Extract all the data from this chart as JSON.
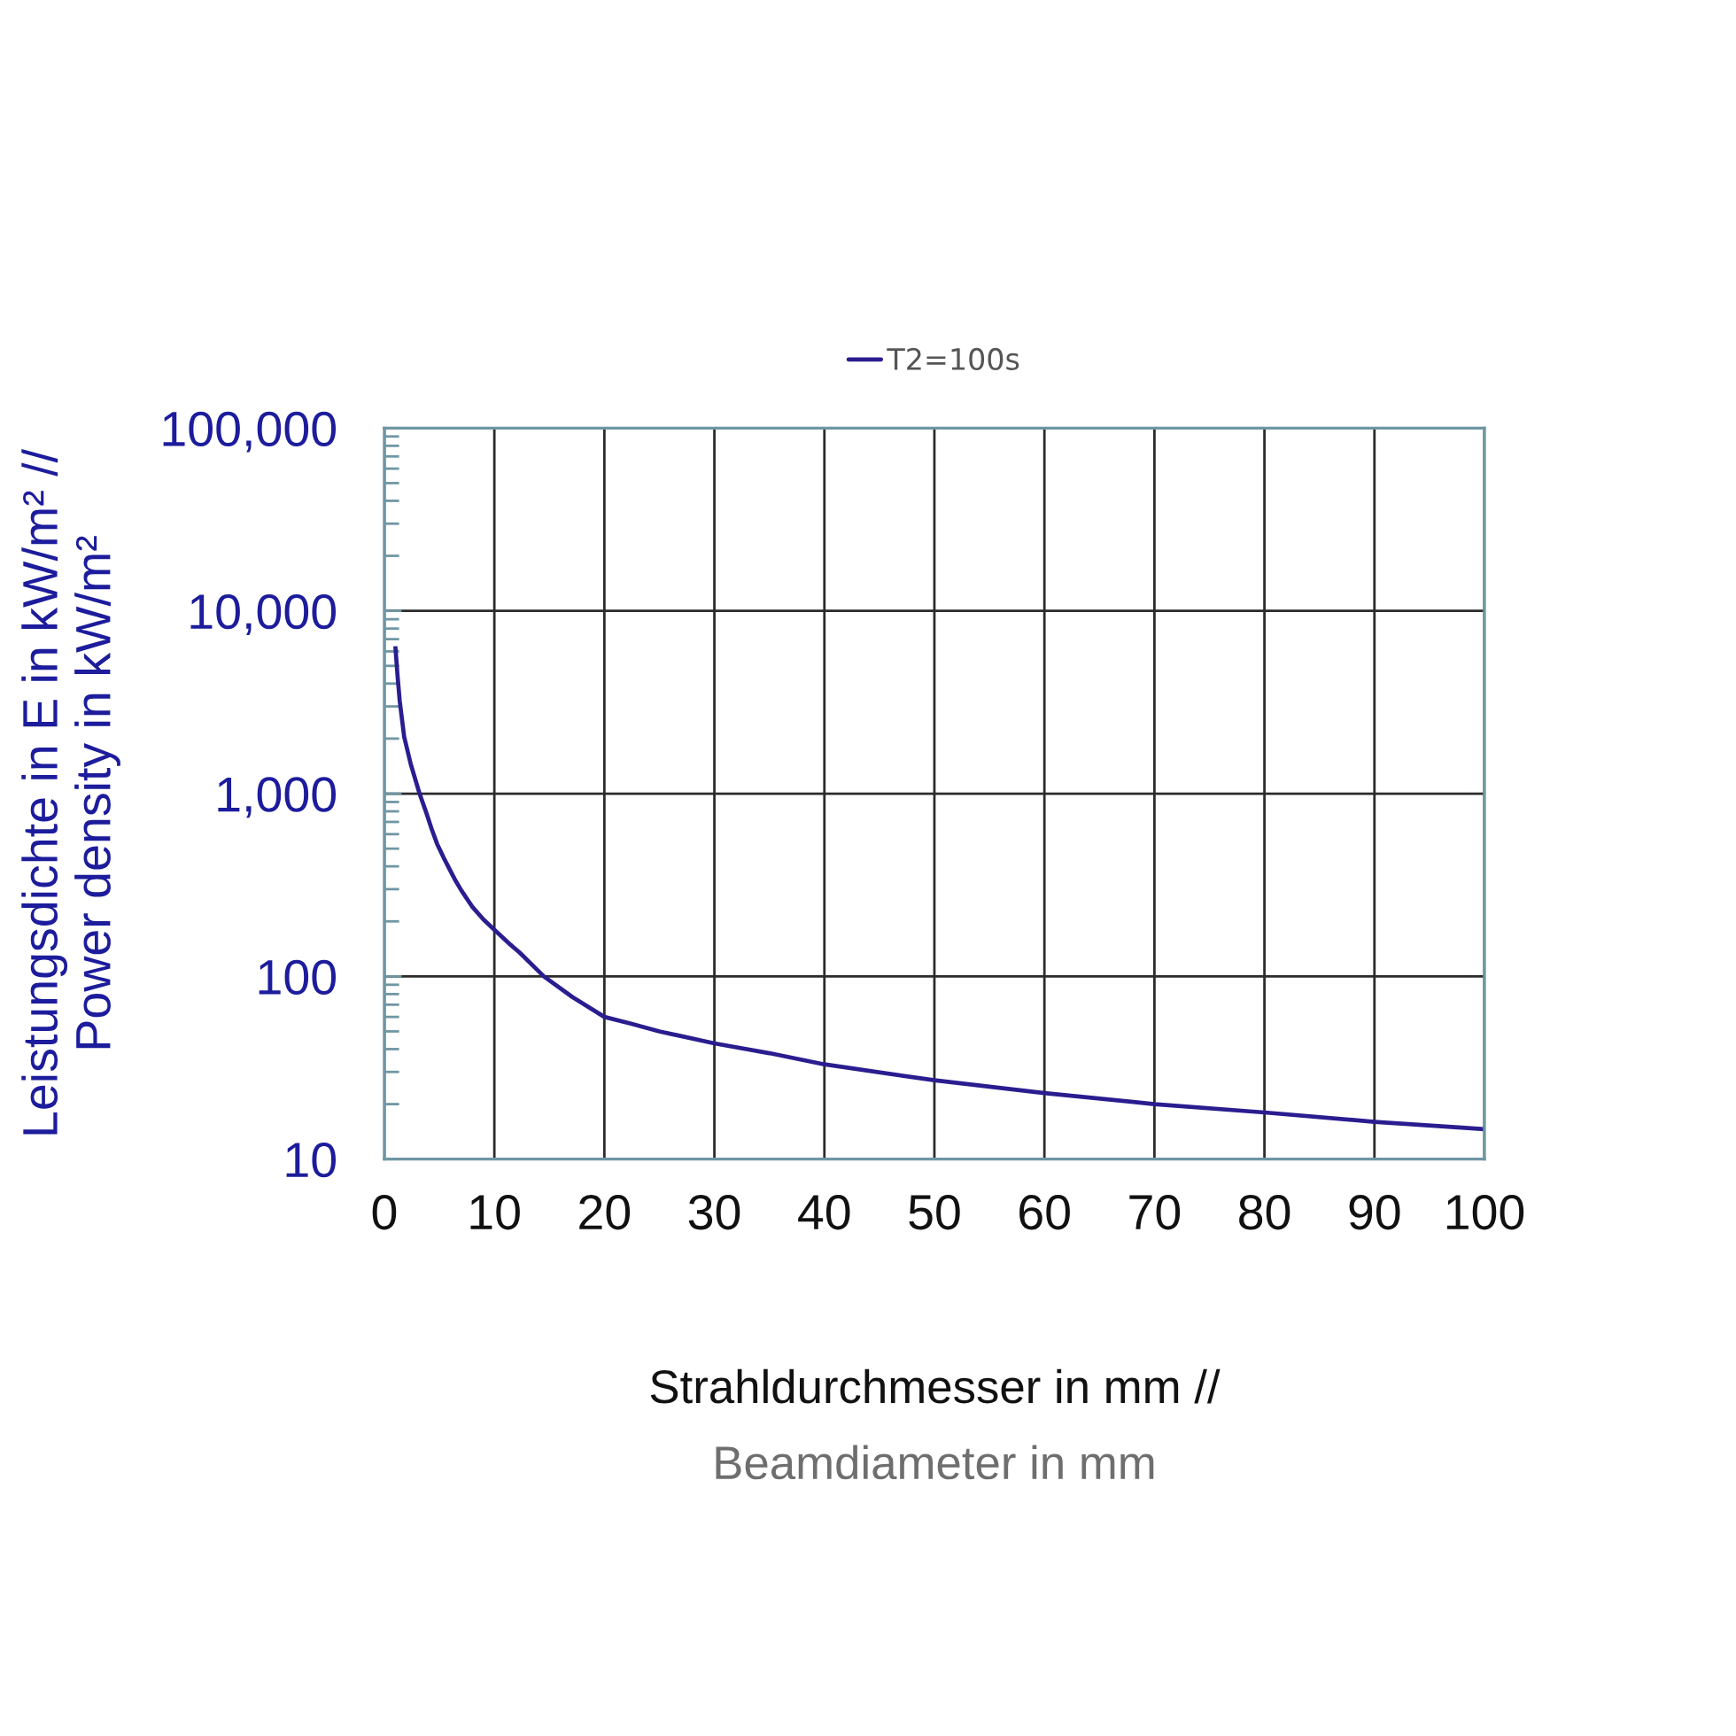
{
  "chart_data": {
    "type": "line",
    "xlabel": "Strahldurchmesser in mm //\nBeamdiameter in mm",
    "ylabel": "Leistungsdichte in E in kW/m² //\nPower density in kW/m²",
    "series": [
      {
        "name": "T2=100s",
        "color": "#2a1d8f",
        "x": [
          1,
          1.2,
          1.4,
          1.8,
          2.4,
          3.2,
          3.8,
          4.3,
          4.8,
          5.4,
          6.4,
          7,
          8,
          9,
          10,
          11.3,
          12.3,
          14.5,
          17.1,
          20,
          22.5,
          25,
          30,
          35,
          40,
          50,
          60,
          70,
          80,
          90,
          100
        ],
        "values": [
          6400,
          4400,
          3200,
          2050,
          1450,
          1000,
          790,
          640,
          530,
          445,
          340,
          295,
          240,
          205,
          180,
          152,
          135,
          100,
          77,
          60,
          55,
          50,
          43,
          38,
          33,
          27,
          23,
          20,
          18,
          16,
          14.6
        ]
      }
    ],
    "xlim": [
      0,
      100
    ],
    "xticks": [
      0,
      10,
      20,
      30,
      40,
      50,
      60,
      70,
      80,
      90,
      100
    ],
    "ylim": [
      10,
      100000
    ],
    "yticks": [
      10,
      100,
      {
        "value": 1000,
        "label": "1,000"
      },
      {
        "value": 10000,
        "label": "10,000"
      },
      {
        "value": 100000,
        "label": "100,000"
      }
    ],
    "log": "y",
    "grid": true,
    "legend": "top",
    "marker": "none",
    "line_style": "solid"
  }
}
